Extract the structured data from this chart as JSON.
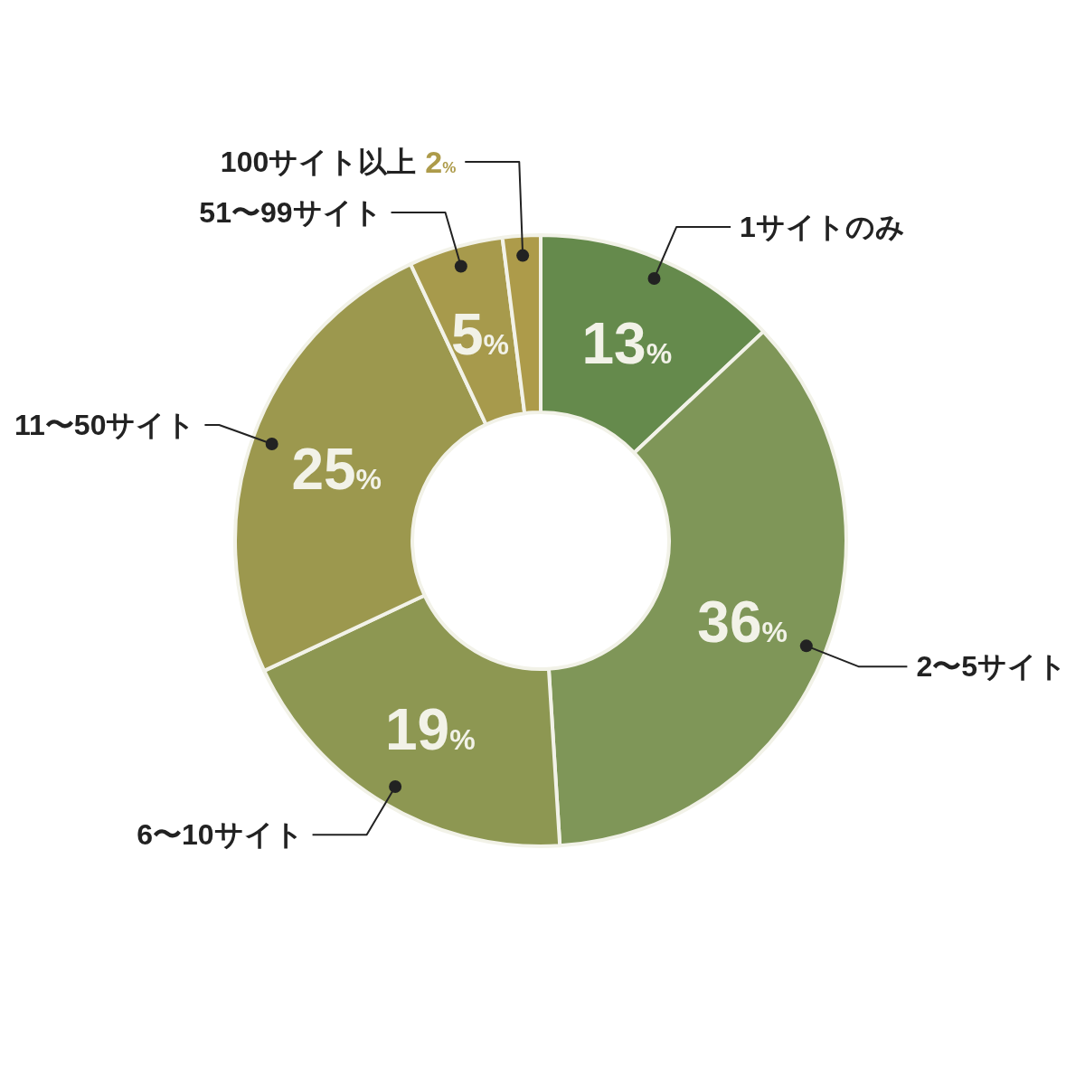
{
  "chart_data": {
    "type": "donut",
    "categories": [
      "1サイトのみ",
      "2〜5サイト",
      "6〜10サイト",
      "11〜50サイト",
      "51〜99サイト",
      "100サイト以上"
    ],
    "values": [
      13,
      36,
      19,
      25,
      5,
      2
    ],
    "value_labels": [
      "13%",
      "36%",
      "19%",
      "25%",
      "5%",
      "2%"
    ],
    "colors": [
      "#658a4c",
      "#7f9658",
      "#8d9752",
      "#9c984e",
      "#a79a4c",
      "#ad9b4a"
    ],
    "legend": false
  }
}
